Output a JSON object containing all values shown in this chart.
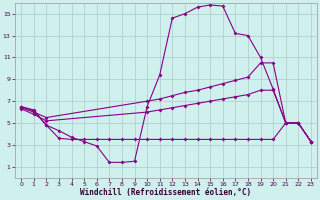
{
  "xlabel": "Windchill (Refroidissement éolien,°C)",
  "bg_color": "#cff0ec",
  "line_color": "#880088",
  "grid_color": "#aacccc",
  "xlim": [
    -0.5,
    23.5
  ],
  "ylim": [
    0,
    16
  ],
  "xticks": [
    0,
    1,
    2,
    3,
    4,
    5,
    6,
    7,
    8,
    9,
    10,
    11,
    12,
    13,
    14,
    15,
    16,
    17,
    18,
    19,
    20,
    21,
    22,
    23
  ],
  "yticks": [
    1,
    3,
    5,
    7,
    9,
    11,
    13,
    15
  ],
  "line1_x": [
    0,
    1,
    2,
    3,
    4,
    5,
    6,
    7,
    8,
    9,
    10,
    11,
    12,
    13,
    14,
    15,
    16,
    17,
    18,
    19,
    20,
    21,
    22,
    23
  ],
  "line1_y": [
    6.5,
    6.2,
    4.8,
    4.3,
    3.7,
    3.3,
    2.9,
    1.4,
    1.4,
    1.5,
    6.5,
    9.4,
    14.6,
    15.0,
    15.6,
    15.8,
    15.7,
    13.2,
    13.0,
    11.0,
    8.1,
    5.0,
    5.0,
    3.3
  ],
  "line2_x": [
    0,
    1,
    2,
    3,
    4,
    5,
    6,
    7,
    8,
    9,
    10,
    11,
    12,
    13,
    14,
    15,
    16,
    17,
    18,
    19,
    20,
    21,
    22,
    23
  ],
  "line2_y": [
    6.5,
    6.1,
    4.8,
    3.6,
    3.5,
    3.5,
    3.5,
    3.5,
    3.5,
    3.5,
    3.5,
    3.5,
    3.5,
    3.5,
    3.5,
    3.5,
    3.5,
    3.5,
    3.5,
    3.5,
    3.5,
    5.0,
    5.0,
    3.3
  ],
  "line3_x": [
    0,
    1,
    2,
    10,
    11,
    12,
    13,
    14,
    15,
    16,
    17,
    18,
    19,
    20,
    21,
    22,
    23
  ],
  "line3_y": [
    6.4,
    6.0,
    5.5,
    7.0,
    7.2,
    7.5,
    7.8,
    8.0,
    8.3,
    8.6,
    8.9,
    9.2,
    10.5,
    10.5,
    5.0,
    5.0,
    3.3
  ],
  "line4_x": [
    0,
    1,
    2,
    10,
    11,
    12,
    13,
    14,
    15,
    16,
    17,
    18,
    19,
    20,
    21,
    22,
    23
  ],
  "line4_y": [
    6.3,
    5.8,
    5.2,
    6.0,
    6.2,
    6.4,
    6.6,
    6.8,
    7.0,
    7.2,
    7.4,
    7.6,
    8.0,
    8.0,
    5.0,
    5.0,
    3.3
  ]
}
